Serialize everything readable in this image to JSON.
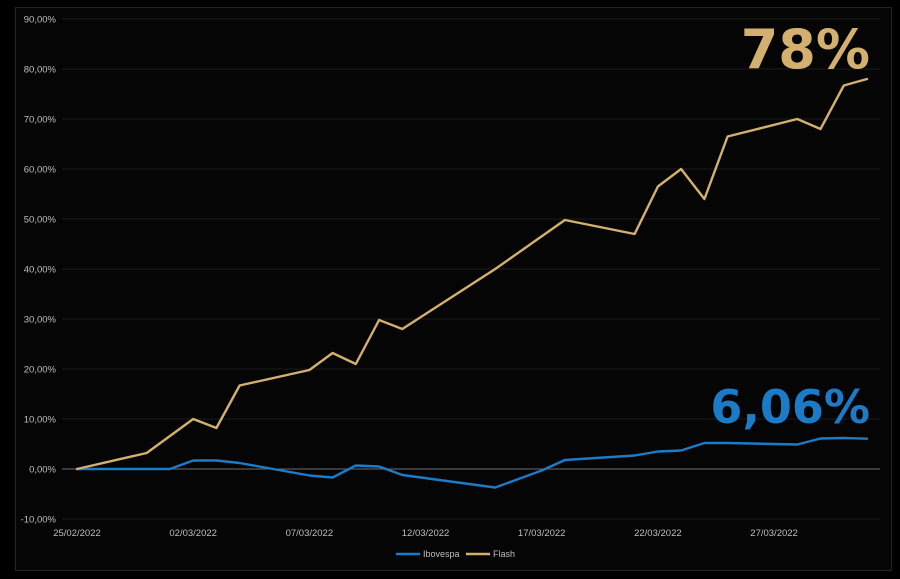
{
  "chart_data": {
    "type": "line",
    "y_tick_labels": [
      "-10,00%",
      "0,00%",
      "10,00%",
      "20,00%",
      "30,00%",
      "40,00%",
      "50,00%",
      "60,00%",
      "70,00%",
      "80,00%",
      "90,00%"
    ],
    "y_tick_values": [
      -10,
      0,
      10,
      20,
      30,
      40,
      50,
      60,
      70,
      80,
      90
    ],
    "ylim": [
      -10,
      90
    ],
    "x_tick_labels": [
      "25/02/2022",
      "02/03/2022",
      "07/03/2022",
      "12/03/2022",
      "17/03/2022",
      "22/03/2022",
      "27/03/2022"
    ],
    "x_tick_days": [
      0,
      5,
      10,
      15,
      20,
      25,
      30
    ],
    "xlim_days": [
      0,
      34
    ],
    "grid": true,
    "legend_position": "bottom",
    "series": [
      {
        "name": "Ibovespa",
        "color": "#1c7bc7",
        "x_days": [
          0,
          4,
          5,
          6,
          7,
          10,
          11,
          12,
          13,
          14,
          18,
          19,
          20,
          21,
          24,
          25,
          26,
          27,
          28,
          31,
          32,
          33,
          34
        ],
        "values": [
          0,
          0,
          1.7,
          1.7,
          1.2,
          -1.3,
          -1.7,
          0.7,
          0.5,
          -1.2,
          -3.7,
          -2.0,
          -0.3,
          1.8,
          2.7,
          3.5,
          3.7,
          5.2,
          5.2,
          4.9,
          6.1,
          6.2,
          6.06
        ]
      },
      {
        "name": "Flash",
        "color": "#d4b06e",
        "x_days": [
          0,
          3,
          5,
          6,
          7,
          10,
          11,
          12,
          13,
          14,
          18,
          21,
          24,
          25,
          26,
          27,
          28,
          31,
          32,
          33,
          34
        ],
        "values": [
          0,
          3.2,
          10,
          8.2,
          16.7,
          19.8,
          23.2,
          21.0,
          29.8,
          28.0,
          40,
          49.8,
          47.0,
          56.5,
          60,
          54,
          66.5,
          70,
          68,
          76.7,
          78
        ]
      }
    ],
    "annotations": [
      {
        "text": "78%",
        "color": "#d4b06e"
      },
      {
        "text": "6,06%",
        "color": "#1c7bc7"
      }
    ]
  }
}
